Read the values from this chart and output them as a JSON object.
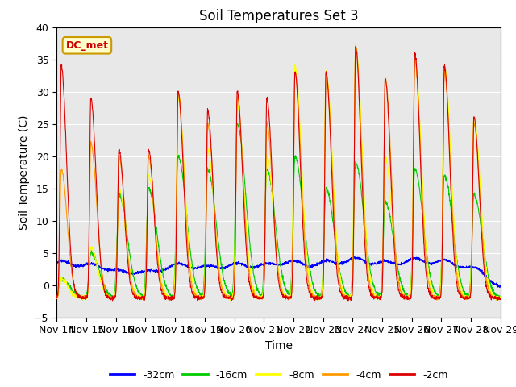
{
  "title": "Soil Temperatures Set 3",
  "xlabel": "Time",
  "ylabel": "Soil Temperature (C)",
  "ylim": [
    -5,
    40
  ],
  "yticks": [
    -5,
    0,
    5,
    10,
    15,
    20,
    25,
    30,
    35,
    40
  ],
  "x_labels": [
    "Nov 14",
    "Nov 15",
    "Nov 16",
    "Nov 17",
    "Nov 18",
    "Nov 19",
    "Nov 20",
    "Nov 21",
    "Nov 22",
    "Nov 23",
    "Nov 24",
    "Nov 25",
    "Nov 26",
    "Nov 27",
    "Nov 28",
    "Nov 29"
  ],
  "legend_labels": [
    "-32cm",
    "-16cm",
    "-8cm",
    "-4cm",
    "-2cm"
  ],
  "legend_colors": [
    "#0000ff",
    "#00cc00",
    "#ffff00",
    "#ff9900",
    "#dd0000"
  ],
  "annotation_text": "DC_met",
  "annotation_color": "#cc0000",
  "annotation_bg": "#ffffcc",
  "bg_color": "#e8e8e8",
  "title_fontsize": 12,
  "axis_fontsize": 10,
  "tick_fontsize": 9,
  "peak_times_frac": [
    0.15,
    1.15,
    2.1,
    3.1,
    4.1,
    5.1,
    6.1,
    7.1,
    8.05,
    9.1,
    10.1,
    11.1,
    12.1,
    13.1,
    14.1
  ],
  "peak_heights_m2": [
    34,
    29,
    21,
    21,
    30,
    27,
    30,
    29,
    33,
    33,
    37,
    32,
    36,
    34,
    26
  ],
  "peak_heights_m4": [
    18,
    22,
    20,
    20,
    30,
    25,
    29,
    25,
    33,
    33,
    37,
    32,
    35,
    33,
    25
  ],
  "peak_heights_m8": [
    1,
    6,
    15,
    17,
    29,
    21,
    28,
    20,
    34,
    33,
    37,
    20,
    35,
    34,
    26
  ],
  "peak_heights_m16": [
    1,
    5,
    14,
    15,
    20,
    18,
    25,
    18,
    20,
    15,
    19,
    13,
    18,
    17,
    14
  ],
  "trough_value": -2,
  "base_temp": -1
}
